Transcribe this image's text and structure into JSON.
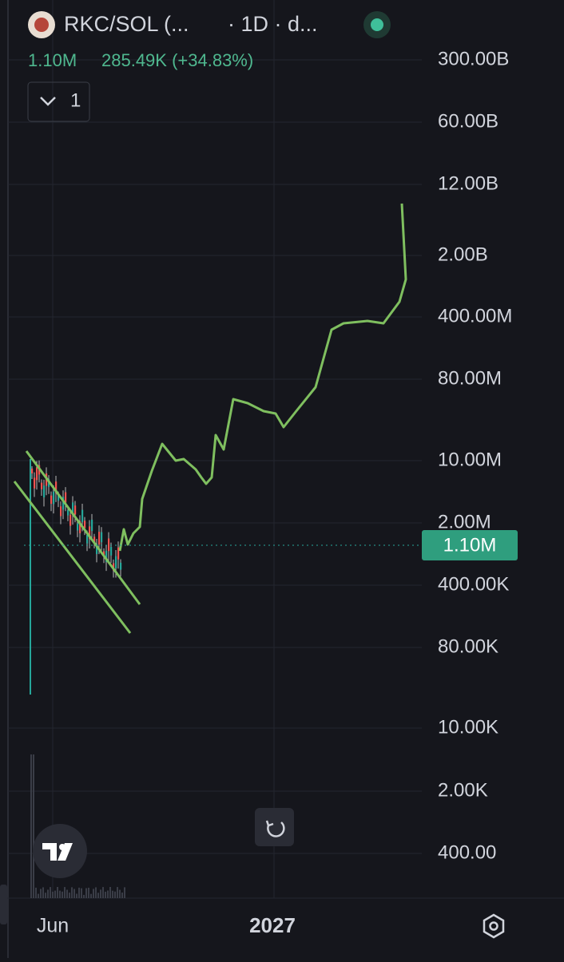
{
  "header": {
    "symbol": "RKC/SOL (...",
    "interval": "· 1D · d...",
    "price": "1.10M",
    "change": "285.49K (+34.83%)",
    "indicator_count": "1"
  },
  "price_axis": {
    "labels": [
      "300.00B",
      "60.00B",
      "12.00B",
      "2.00B",
      "400.00M",
      "80.00M",
      "10.00M",
      "2.00M",
      "400.00K",
      "80.00K",
      "10.00K",
      "2.00K",
      "400.00"
    ],
    "current_price": "1.10M"
  },
  "time_axis": {
    "labels": [
      "Jun",
      "2027"
    ]
  }
}
